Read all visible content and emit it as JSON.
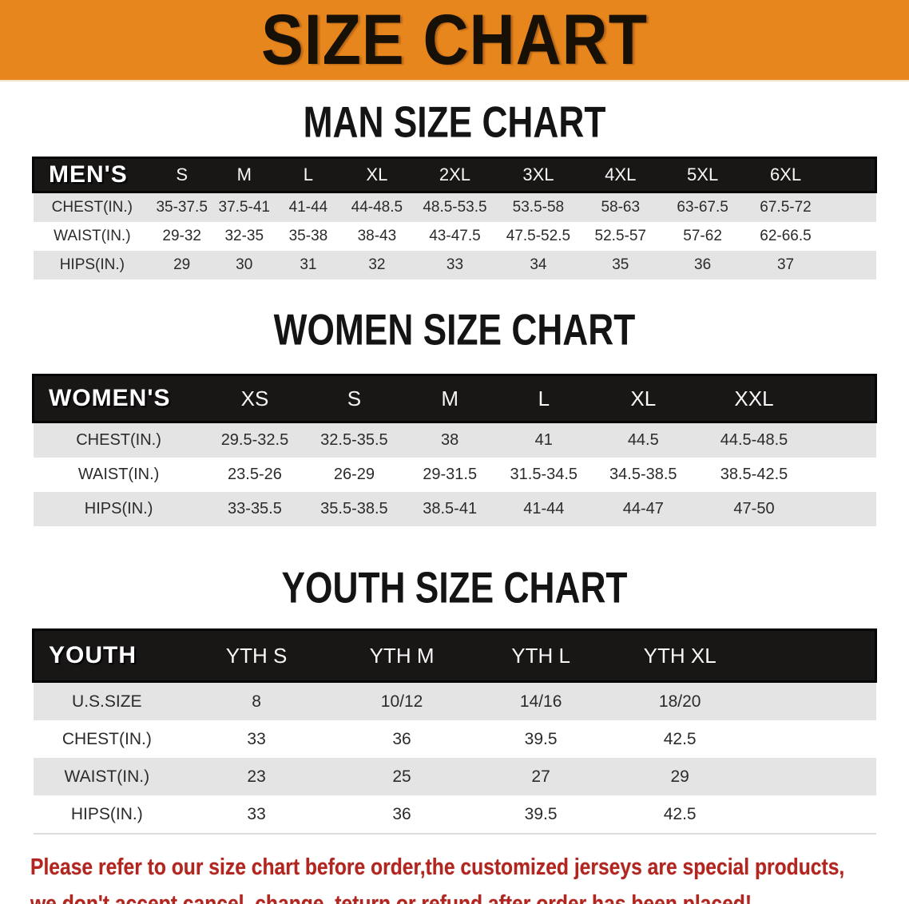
{
  "banner": {
    "title": "SIZE CHART",
    "bg_color": "#E8861E",
    "text_color": "#171006"
  },
  "man_section": {
    "title": "MAN SIZE CHART",
    "table": {
      "header": [
        "MEN'S",
        "S",
        "M",
        "L",
        "XL",
        "2XL",
        "3XL",
        "4XL",
        "5XL",
        "6XL"
      ],
      "rows": [
        [
          "CHEST(IN.)",
          "35-37.5",
          "37.5-41",
          "41-44",
          "44-48.5",
          "48.5-53.5",
          "53.5-58",
          "58-63",
          "63-67.5",
          "67.5-72"
        ],
        [
          "WAIST(IN.)",
          "29-32",
          "32-35",
          "35-38",
          "38-43",
          "43-47.5",
          "47.5-52.5",
          "52.5-57",
          "57-62",
          "62-66.5"
        ],
        [
          "HIPS(IN.)",
          "29",
          "30",
          "31",
          "32",
          "33",
          "34",
          "35",
          "36",
          "37"
        ]
      ]
    }
  },
  "women_section": {
    "title": "WOMEN SIZE CHART",
    "table": {
      "header": [
        "WOMEN'S",
        "XS",
        "S",
        "M",
        "L",
        "XL",
        "XXL"
      ],
      "rows": [
        [
          "CHEST(IN.)",
          "29.5-32.5",
          "32.5-35.5",
          "38",
          "41",
          "44.5",
          "44.5-48.5"
        ],
        [
          "WAIST(IN.)",
          "23.5-26",
          "26-29",
          "29-31.5",
          "31.5-34.5",
          "34.5-38.5",
          "38.5-42.5"
        ],
        [
          "HIPS(IN.)",
          "33-35.5",
          "35.5-38.5",
          "38.5-41",
          "41-44",
          "44-47",
          "47-50"
        ]
      ]
    }
  },
  "youth_section": {
    "title": "YOUTH SIZE CHART",
    "table": {
      "header": [
        "YOUTH",
        "YTH S",
        "YTH M",
        "YTH L",
        "YTH XL"
      ],
      "rows": [
        [
          "U.S.SIZE",
          "8",
          "10/12",
          "14/16",
          "18/20"
        ],
        [
          "CHEST(IN.)",
          "33",
          "36",
          "39.5",
          "42.5"
        ],
        [
          "WAIST(IN.)",
          "23",
          "25",
          "27",
          "29"
        ],
        [
          "HIPS(IN.)",
          "33",
          "36",
          "39.5",
          "42.5"
        ]
      ]
    }
  },
  "note": {
    "color": "#B3251F",
    "lines": [
      "Please refer to our size chart before order,the customized jerseys are special products,",
      "we don't accept cancel, change, teturn or refund after order has been placed!"
    ]
  }
}
